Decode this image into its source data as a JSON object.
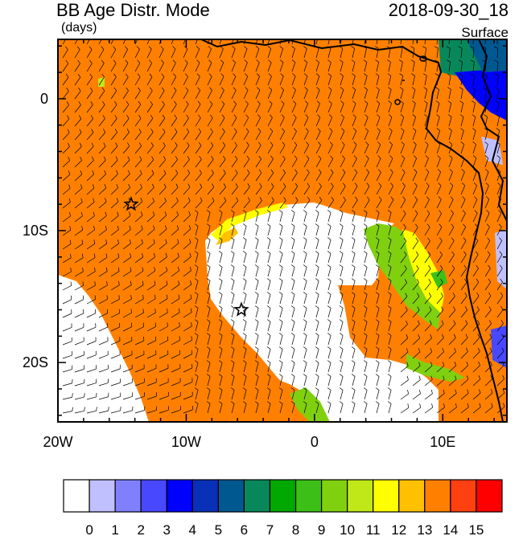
{
  "title": "BB Age Distr. Mode",
  "units": "(days)",
  "datetime": "2018-09-30_18",
  "level": "Surface",
  "map": {
    "lon_range": [
      -20,
      15
    ],
    "lat_range": [
      -24.5,
      4.5
    ],
    "x_ticks": [
      {
        "value": -20,
        "label": "20W"
      },
      {
        "value": -10,
        "label": "10W"
      },
      {
        "value": 0,
        "label": "0"
      },
      {
        "value": 10,
        "label": "10E"
      }
    ],
    "y_ticks": [
      {
        "value": 0,
        "label": "0"
      },
      {
        "value": -10,
        "label": "10S"
      },
      {
        "value": -20,
        "label": "20S"
      }
    ],
    "markers": [
      {
        "name": "star",
        "lon": -14.3,
        "lat": -8.0
      },
      {
        "name": "star",
        "lon": -5.7,
        "lat": -16.0
      }
    ]
  },
  "colorbar": {
    "labels": [
      "0",
      "1",
      "2",
      "3",
      "4",
      "5",
      "6",
      "7",
      "8",
      "9",
      "10",
      "11",
      "12",
      "13",
      "14",
      "15"
    ],
    "colors": [
      "#ffffff",
      "#c0c0ff",
      "#8080ff",
      "#4848ff",
      "#0000ff",
      "#0830b8",
      "#005890",
      "#08885a",
      "#00a800",
      "#3cc018",
      "#80d010",
      "#c0e818",
      "#ffff00",
      "#ffc000",
      "#ff8000",
      "#ff4010",
      "#ff0000"
    ]
  }
}
